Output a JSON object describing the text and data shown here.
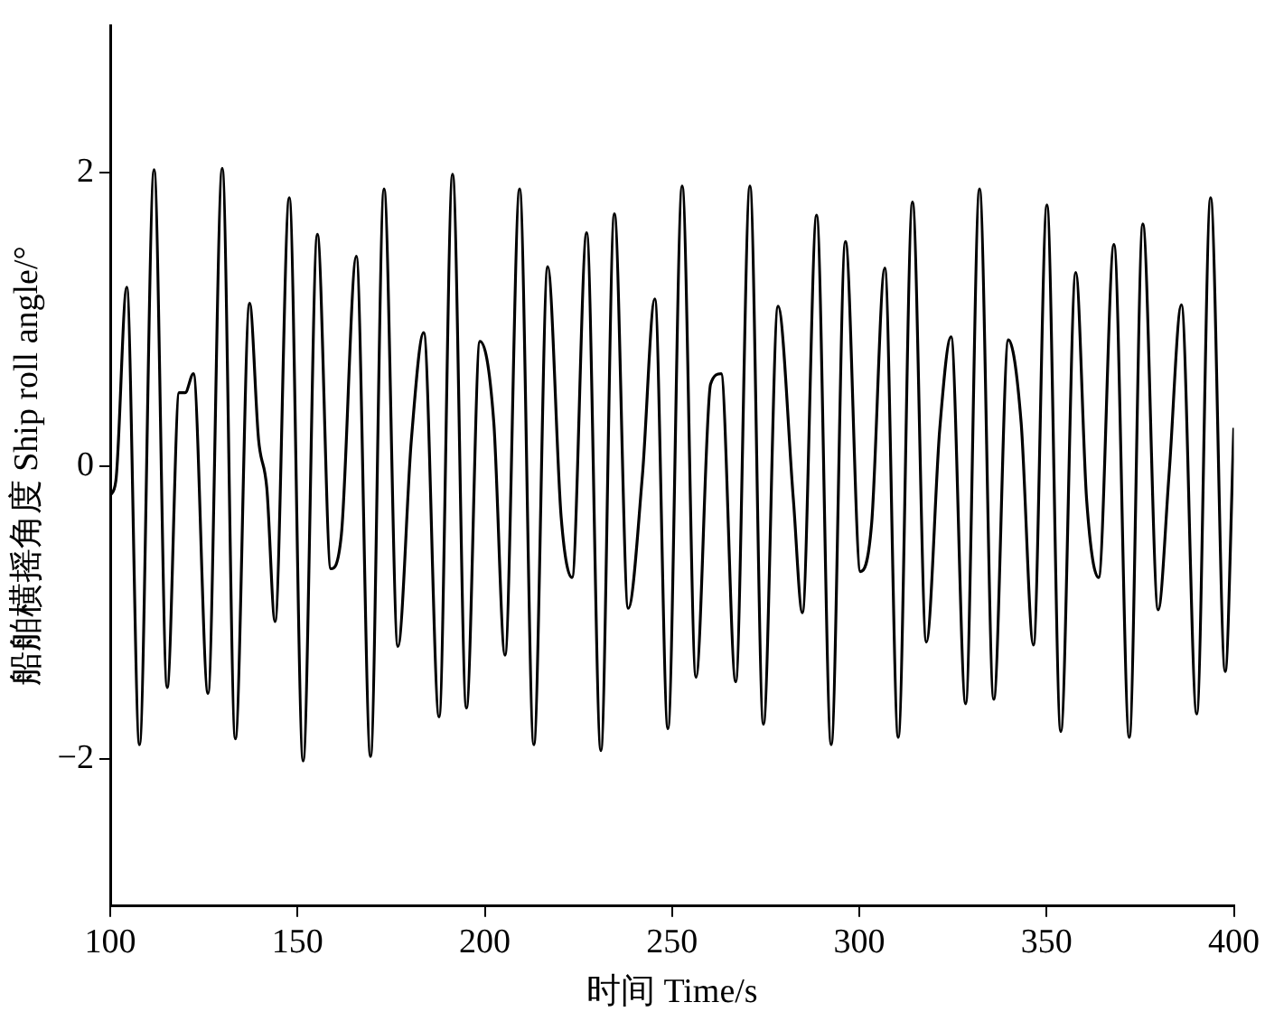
{
  "chart_data": {
    "type": "line",
    "xlabel": "时间 Time/s",
    "ylabel": "船舶横摇角度 Ship roll angle/°",
    "xlim": [
      100,
      400
    ],
    "ylim": [
      -3,
      3
    ],
    "xticks": [
      100,
      150,
      200,
      250,
      300,
      350,
      400
    ],
    "yticks": [
      {
        "value": -2,
        "label": "−2"
      },
      0,
      2
    ],
    "grid": false,
    "legend": false,
    "marker": "none",
    "line_style": "solid",
    "x": [
      100,
      101.5,
      104.4,
      107.8,
      111.7,
      115.2,
      118.4,
      120,
      122.2,
      126.1,
      129.9,
      133.4,
      137.2,
      139.6,
      141.8,
      144.0,
      147.8,
      151.5,
      155.3,
      158.9,
      161.7,
      165.7,
      169.5,
      173.1,
      176.8,
      180.4,
      183.7,
      187.8,
      191.4,
      195.1,
      198.7,
      202.4,
      205.4,
      209.3,
      213.1,
      216.8,
      220.4,
      223.3,
      227.2,
      231.0,
      234.6,
      238.3,
      242.1,
      245.4,
      248.9,
      252.7,
      256.4,
      260.3,
      263.1,
      267.0,
      270.8,
      274.4,
      278.3,
      282.4,
      284.8,
      288.6,
      292.5,
      296.3,
      300.3,
      303.3,
      306.8,
      310.4,
      314.2,
      317.9,
      321.5,
      324.5,
      328.4,
      332.1,
      335.9,
      339.8,
      343.2,
      346.5,
      350.1,
      353.8,
      357.8,
      360.7,
      363.9,
      368.0,
      372.1,
      375.7,
      379.8,
      382.7,
      386.0,
      390.1,
      393.8,
      397.7,
      400
    ],
    "series": [
      {
        "color": "#000000",
        "values": [
          -0.2,
          -0.1,
          1.22,
          -1.9,
          2.02,
          -1.51,
          0.5,
          0.5,
          0.63,
          -1.55,
          2.03,
          -1.86,
          1.11,
          0.18,
          -0.15,
          -1.06,
          1.83,
          -2.01,
          1.58,
          -0.7,
          -0.47,
          1.43,
          -1.98,
          1.89,
          -1.23,
          0.18,
          0.91,
          -1.71,
          1.99,
          -1.65,
          0.85,
          0.3,
          -1.29,
          1.89,
          -1.9,
          1.36,
          -0.35,
          -0.76,
          1.59,
          -1.94,
          1.72,
          -0.97,
          -0.06,
          1.14,
          -1.79,
          1.91,
          -1.44,
          0.56,
          0.63,
          -1.47,
          1.91,
          -1.76,
          1.09,
          -0.23,
          -1.0,
          1.71,
          -1.9,
          1.53,
          -0.72,
          -0.39,
          1.35,
          -1.85,
          1.8,
          -1.2,
          0.26,
          0.88,
          -1.62,
          1.89,
          -1.59,
          0.86,
          0.3,
          -1.22,
          1.78,
          -1.81,
          1.32,
          -0.23,
          -0.76,
          1.51,
          -1.85,
          1.65,
          -0.98,
          -0.06,
          1.1,
          -1.69,
          1.83,
          -1.4,
          0.26
        ]
      }
    ]
  }
}
